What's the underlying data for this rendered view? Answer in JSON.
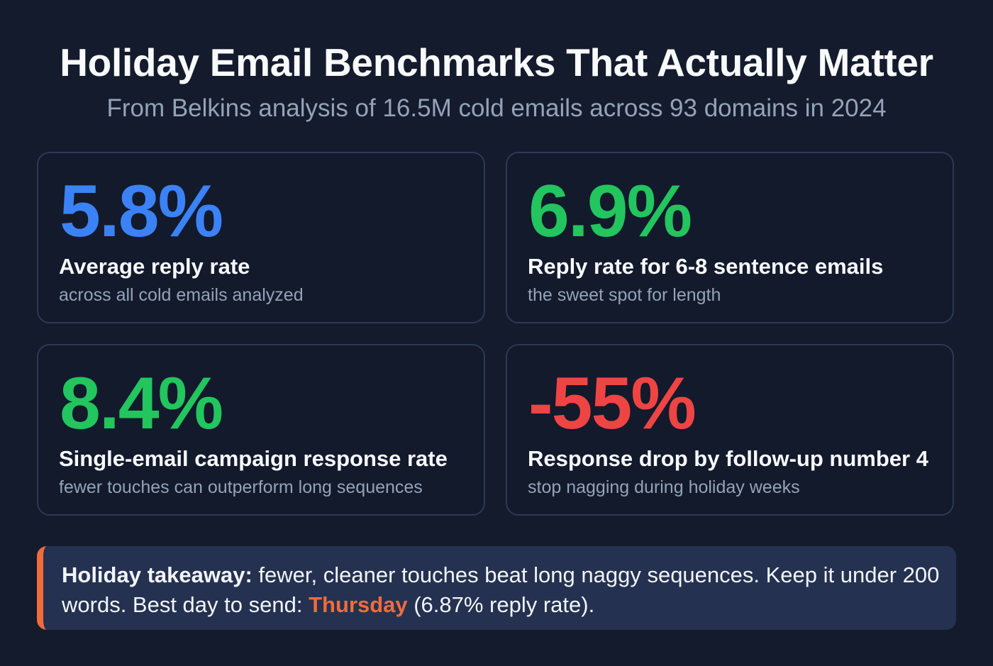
{
  "header": {
    "title": "Holiday Email Benchmarks That Actually Matter",
    "subtitle": "From Belkins analysis of 16.5M cold emails across 93 domains in 2024"
  },
  "stats": [
    {
      "value": "5.8%",
      "label": "Average reply rate",
      "sub": "across all cold emails analyzed",
      "color": "#3b82f6"
    },
    {
      "value": "6.9%",
      "label": "Reply rate for 6-8 sentence emails",
      "sub": "the sweet spot for length",
      "color": "#22c55e"
    },
    {
      "value": "8.4%",
      "label": "Single-email campaign response rate",
      "sub": "fewer touches can outperform long sequences",
      "color": "#22c55e"
    },
    {
      "value": "-55%",
      "label": "Response drop by follow-up number 4",
      "sub": "stop nagging during holiday weeks",
      "color": "#ef4444"
    }
  ],
  "callout": {
    "lead": "Holiday takeaway:",
    "text1": " fewer, cleaner touches beat long naggy sequences. Keep it under 200 words. Best day to send: ",
    "highlight": "Thursday",
    "text2": " (6.87% reply rate).",
    "accent": "#f26b3a"
  }
}
